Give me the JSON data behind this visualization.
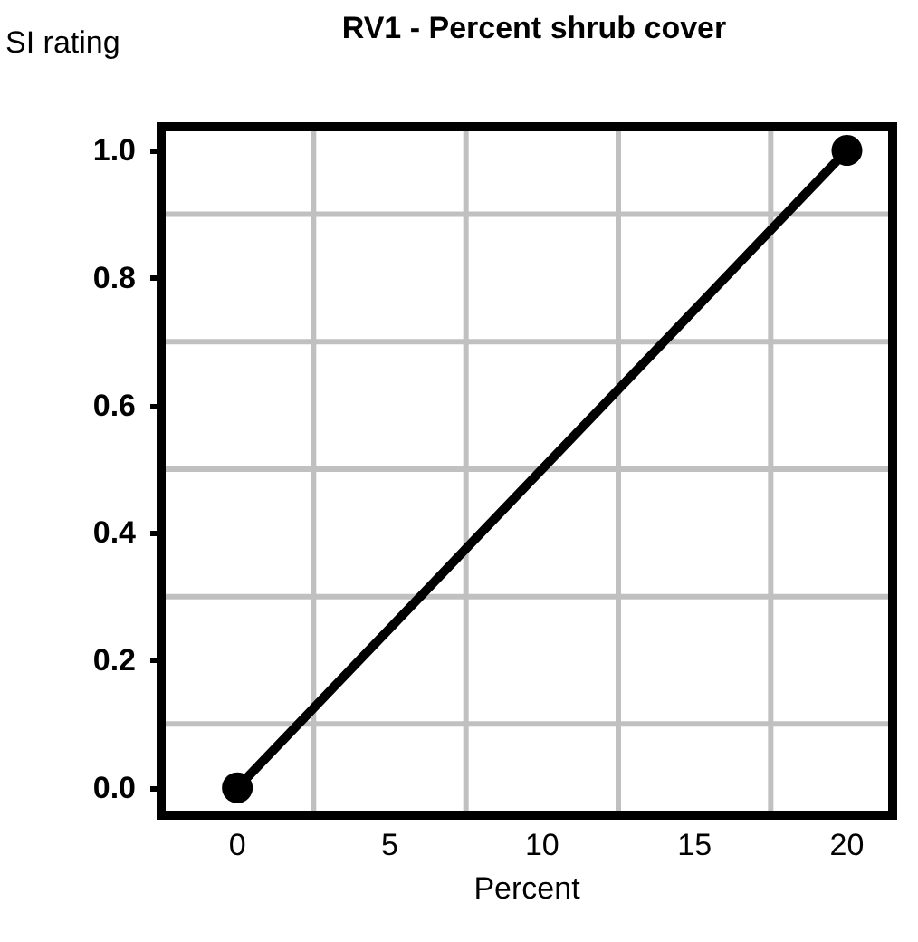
{
  "chart_data": {
    "type": "line",
    "title": "RV1 - Percent shrub cover",
    "xlabel": "Percent",
    "ylabel": "SI rating",
    "x": [
      0,
      20
    ],
    "series": [
      {
        "color": "#000000",
        "values": [
          0,
          1
        ]
      }
    ],
    "xlim": [
      -2.5,
      21.5
    ],
    "xticks": [
      0,
      5,
      10,
      15,
      20
    ],
    "ylim": [
      -0.043,
      1.037
    ],
    "yticks": [
      {
        "value": 0,
        "label": "0.0"
      },
      {
        "value": 0.2,
        "label": "0.2"
      },
      {
        "value": 0.4,
        "label": "0.4"
      },
      {
        "value": 0.6,
        "label": "0.6"
      },
      {
        "value": 0.8,
        "label": "0.8"
      },
      {
        "value": 1,
        "label": "1.0"
      }
    ],
    "grid": true,
    "marker": "circle",
    "line_style": "solid"
  }
}
